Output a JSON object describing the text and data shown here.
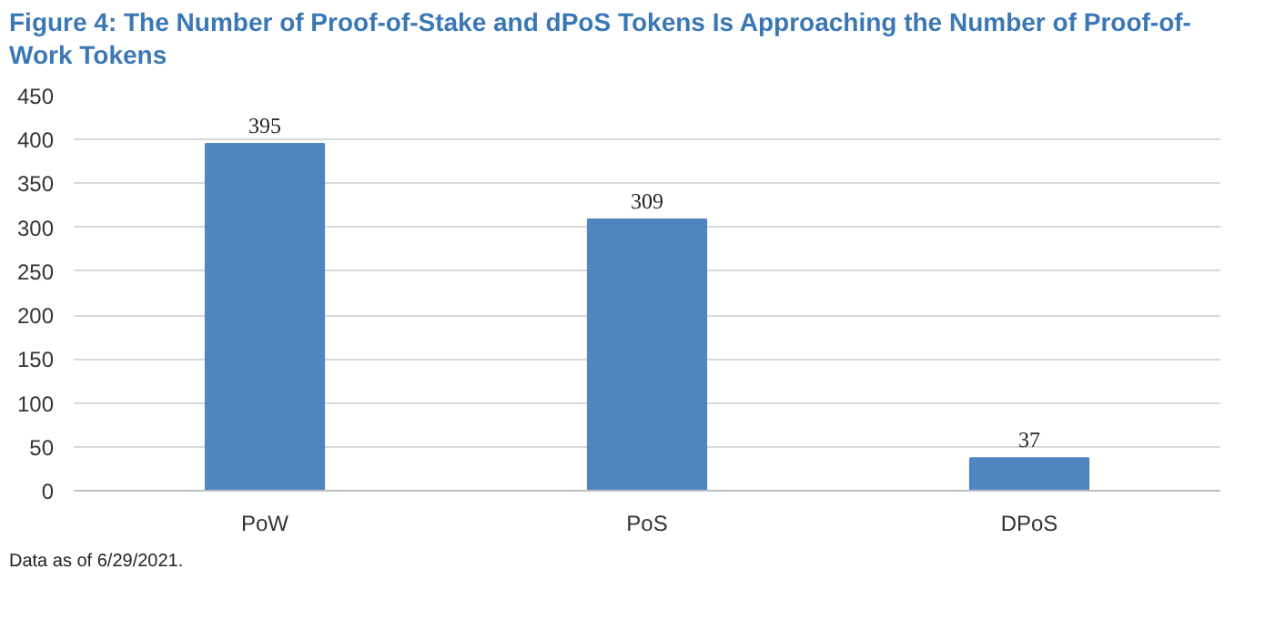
{
  "chart_data": {
    "type": "bar",
    "title": "Figure 4: The Number of Proof-of-Stake and dPoS Tokens Is Approaching the Number of Proof-of-Work Tokens",
    "categories": [
      "PoW",
      "PoS",
      "DPoS"
    ],
    "values": [
      395,
      309,
      37
    ],
    "color": "#4f86c0",
    "ylim": [
      0,
      450
    ],
    "yticks": [
      0,
      50,
      100,
      150,
      200,
      250,
      300,
      350,
      400,
      450
    ],
    "grid": "y",
    "data_labels": true,
    "annotations": [
      "Data as of 6/29/2021."
    ]
  }
}
